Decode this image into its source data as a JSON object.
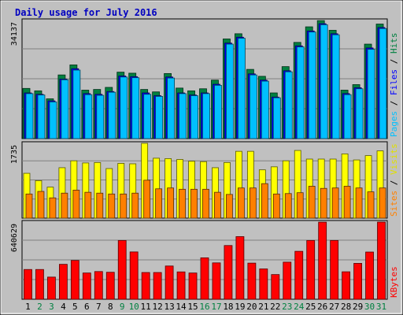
{
  "chart_data": {
    "type": "bar",
    "title": "Daily usage for July 2016",
    "categories": [
      "1",
      "2",
      "3",
      "4",
      "5",
      "6",
      "7",
      "8",
      "9",
      "10",
      "11",
      "12",
      "13",
      "14",
      "15",
      "16",
      "17",
      "18",
      "19",
      "20",
      "21",
      "22",
      "23",
      "24",
      "25",
      "26",
      "27",
      "28",
      "29",
      "30",
      "31"
    ],
    "weekend_days": [
      "2",
      "3",
      "9",
      "10",
      "16",
      "17",
      "23",
      "24",
      "30",
      "31"
    ],
    "panels": [
      {
        "id": "hits_files_pages",
        "ymax_label": "34137",
        "ymax": 34137,
        "ylabel_parts": [
          {
            "text": "Pages",
            "color": "#00c0ff"
          },
          {
            "text": " / ",
            "color": "#000000"
          },
          {
            "text": "Files",
            "color": "#0000ff"
          },
          {
            "text": " / ",
            "color": "#000000"
          },
          {
            "text": "Hits",
            "color": "#008040"
          }
        ],
        "series": [
          {
            "name": "Hits",
            "color": "#008040",
            "values": [
              14500,
              13800,
              11500,
              18400,
              21300,
              14000,
              14200,
              14800,
              19200,
              18900,
              14200,
              13500,
              18800,
              14600,
              13800,
              14400,
              16900,
              28800,
              30300,
              20000,
              18000,
              13200,
              20800,
              27800,
              32300,
              34100,
              31300,
              14000,
              15600,
              27300,
              33100
            ]
          },
          {
            "name": "Files",
            "color": "#0000ff",
            "values": [
              13200,
              12800,
              10900,
              17200,
              20200,
              13000,
              12800,
              13600,
              18100,
              17900,
              13200,
              12400,
              17800,
              13200,
              12600,
              13200,
              15700,
              27600,
              29300,
              18700,
              16900,
              12000,
              19600,
              26800,
              31100,
              33200,
              30300,
              13000,
              14700,
              26200,
              32100
            ]
          },
          {
            "name": "Pages",
            "color": "#00c0ff",
            "values": [
              13000,
              12600,
              10600,
              17000,
              19800,
              12700,
              12500,
              13400,
              17800,
              17600,
              12800,
              12200,
              17500,
              13000,
              12400,
              13000,
              15400,
              27300,
              29000,
              18400,
              16600,
              11800,
              19300,
              26500,
              30800,
              32900,
              30000,
              12700,
              14400,
              25800,
              31800
            ]
          }
        ]
      },
      {
        "id": "visits_sites",
        "ymax_label": "1735",
        "ymax": 1735,
        "ylabel_parts": [
          {
            "text": "Sites",
            "color": "#ff8000"
          },
          {
            "text": " / ",
            "color": "#000000"
          },
          {
            "text": "Visits",
            "color": "#e0e000"
          }
        ],
        "series": [
          {
            "name": "Visits",
            "color": "#ffff00",
            "values": [
              1040,
              870,
              720,
              1170,
              1330,
              1280,
              1290,
              1150,
              1270,
              1260,
              1735,
              1390,
              1380,
              1360,
              1320,
              1310,
              1170,
              1290,
              1550,
              1550,
              1120,
              1190,
              1330,
              1570,
              1370,
              1370,
              1370,
              1490,
              1350,
              1450,
              1560
            ]
          },
          {
            "name": "Sites",
            "color": "#ff8000",
            "values": [
              560,
              620,
              470,
              580,
              650,
              600,
              580,
              560,
              560,
              580,
              880,
              680,
              700,
              670,
              670,
              670,
              600,
              550,
              700,
              700,
              800,
              560,
              570,
              590,
              740,
              690,
              700,
              740,
              700,
              610,
              700
            ]
          }
        ]
      },
      {
        "id": "kbytes",
        "ymax_label": "640629",
        "ymax": 640629,
        "ylabel_parts": [
          {
            "text": "KBytes",
            "color": "#ff0000"
          }
        ],
        "series": [
          {
            "name": "KBytes",
            "color": "#ff0000",
            "values": [
              247000,
              247000,
              184000,
              290000,
              322000,
              218000,
              230000,
              224000,
              488000,
              393000,
              222000,
              222000,
              276000,
              227000,
              218000,
              344000,
              302000,
              446000,
              520000,
              300000,
              252000,
              205000,
              308000,
              398000,
              488000,
              640000,
              488000,
              228000,
              298000,
              392000,
              640629
            ]
          }
        ]
      }
    ]
  }
}
